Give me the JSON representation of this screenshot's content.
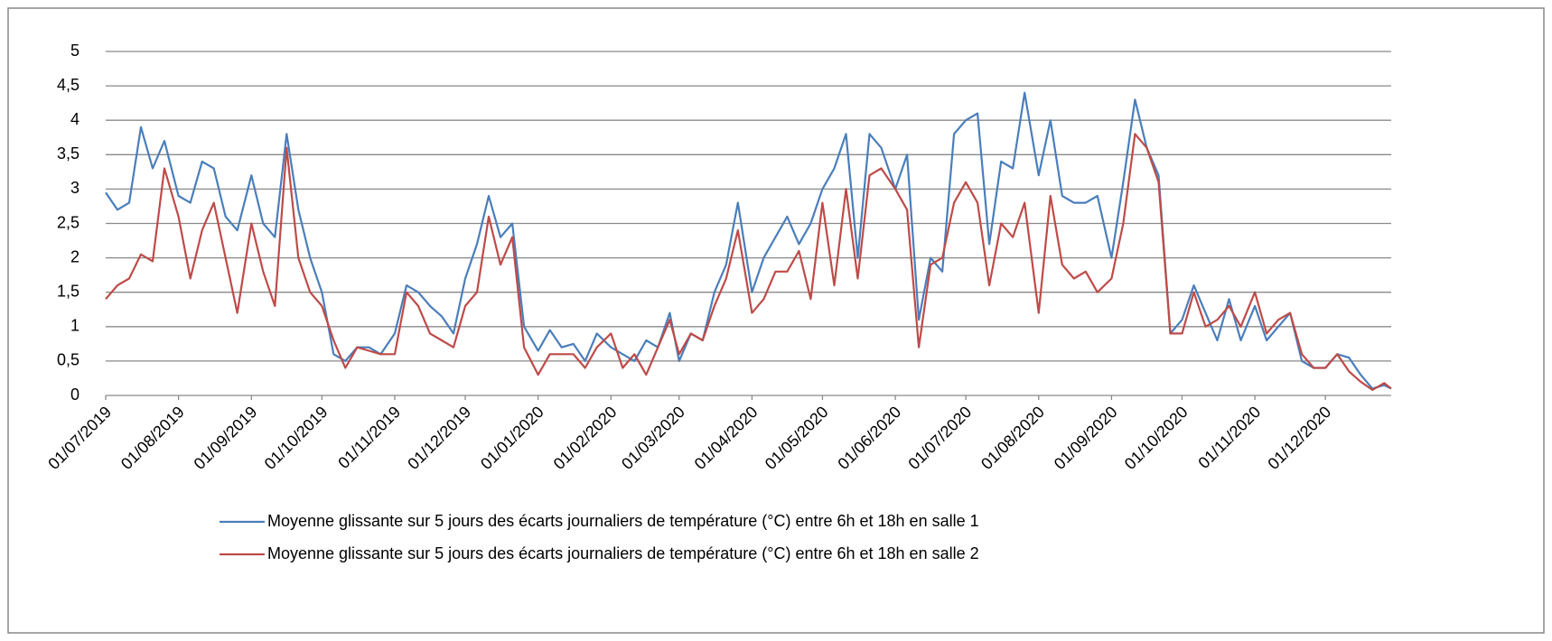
{
  "chart_data": {
    "type": "line",
    "x": [
      "01/07/2019",
      "06/07/2019",
      "11/07/2019",
      "16/07/2019",
      "21/07/2019",
      "26/07/2019",
      "01/08/2019",
      "06/08/2019",
      "11/08/2019",
      "16/08/2019",
      "21/08/2019",
      "26/08/2019",
      "01/09/2019",
      "06/09/2019",
      "11/09/2019",
      "16/09/2019",
      "21/09/2019",
      "26/09/2019",
      "01/10/2019",
      "06/10/2019",
      "11/10/2019",
      "16/10/2019",
      "21/10/2019",
      "26/10/2019",
      "01/11/2019",
      "06/11/2019",
      "11/11/2019",
      "16/11/2019",
      "21/11/2019",
      "26/11/2019",
      "01/12/2019",
      "06/12/2019",
      "11/12/2019",
      "16/12/2019",
      "21/12/2019",
      "26/12/2019",
      "01/01/2020",
      "06/01/2020",
      "11/01/2020",
      "16/01/2020",
      "21/01/2020",
      "26/01/2020",
      "01/02/2020",
      "06/02/2020",
      "11/02/2020",
      "16/02/2020",
      "21/02/2020",
      "26/02/2020",
      "01/03/2020",
      "06/03/2020",
      "11/03/2020",
      "16/03/2020",
      "21/03/2020",
      "26/03/2020",
      "01/04/2020",
      "06/04/2020",
      "11/04/2020",
      "16/04/2020",
      "21/04/2020",
      "26/04/2020",
      "01/05/2020",
      "06/05/2020",
      "11/05/2020",
      "16/05/2020",
      "21/05/2020",
      "26/05/2020",
      "01/06/2020",
      "06/06/2020",
      "11/06/2020",
      "16/06/2020",
      "21/06/2020",
      "26/06/2020",
      "01/07/2020",
      "06/07/2020",
      "11/07/2020",
      "16/07/2020",
      "21/07/2020",
      "26/07/2020",
      "01/08/2020",
      "06/08/2020",
      "11/08/2020",
      "16/08/2020",
      "21/08/2020",
      "26/08/2020",
      "01/09/2020",
      "06/09/2020",
      "11/09/2020",
      "16/09/2020",
      "21/09/2020",
      "26/09/2020",
      "01/10/2020",
      "06/10/2020",
      "11/10/2020",
      "16/10/2020",
      "21/10/2020",
      "26/10/2020",
      "01/11/2020",
      "06/11/2020",
      "11/11/2020",
      "16/11/2020",
      "21/11/2020",
      "26/11/2020",
      "01/12/2020",
      "06/12/2020",
      "11/12/2020",
      "16/12/2020",
      "21/12/2020",
      "26/12/2020",
      "29/12/2020"
    ],
    "series": [
      {
        "name": "Moyenne glissante sur 5 jours des écarts journaliers de température (°C) entre 6h et 18h en salle 1",
        "color": "#4a7ebb",
        "values": [
          2.95,
          2.7,
          2.8,
          3.9,
          3.3,
          3.7,
          2.9,
          2.8,
          3.4,
          3.3,
          2.6,
          2.4,
          3.2,
          2.5,
          2.3,
          3.8,
          2.7,
          2.0,
          1.5,
          0.6,
          0.5,
          0.7,
          0.7,
          0.6,
          0.9,
          1.6,
          1.5,
          1.3,
          1.15,
          0.9,
          1.7,
          2.2,
          2.9,
          2.3,
          2.5,
          1.0,
          0.65,
          0.95,
          0.7,
          0.75,
          0.5,
          0.9,
          0.7,
          0.6,
          0.5,
          0.8,
          0.7,
          1.2,
          0.5,
          0.9,
          0.8,
          1.5,
          1.9,
          2.8,
          1.5,
          2.0,
          2.3,
          2.6,
          2.2,
          2.5,
          3.0,
          3.3,
          3.8,
          2.0,
          3.8,
          3.6,
          3.0,
          3.5,
          1.1,
          2.0,
          1.8,
          3.8,
          4.0,
          4.1,
          2.2,
          3.4,
          3.3,
          4.4,
          3.2,
          4.0,
          2.9,
          2.8,
          2.8,
          2.9,
          2.0,
          3.1,
          4.3,
          3.6,
          3.2,
          0.9,
          1.1,
          1.6,
          1.2,
          0.8,
          1.4,
          0.8,
          1.3,
          0.8,
          1.0,
          1.2,
          0.5,
          0.4,
          0.4,
          0.6,
          0.55,
          0.3,
          0.1,
          0.15,
          0.1
        ]
      },
      {
        "name": "Moyenne glissante sur 5 jours des écarts journaliers de température (°C) entre 6h et 18h en salle 2",
        "color": "#be4b48",
        "values": [
          1.4,
          1.6,
          1.7,
          2.05,
          1.95,
          3.3,
          2.6,
          1.7,
          2.4,
          2.8,
          2.0,
          1.2,
          2.5,
          1.8,
          1.3,
          3.6,
          2.0,
          1.5,
          1.3,
          0.8,
          0.4,
          0.7,
          0.65,
          0.6,
          0.6,
          1.5,
          1.3,
          0.9,
          0.8,
          0.7,
          1.3,
          1.5,
          2.6,
          1.9,
          2.3,
          0.7,
          0.3,
          0.6,
          0.6,
          0.6,
          0.4,
          0.7,
          0.9,
          0.4,
          0.6,
          0.3,
          0.7,
          1.1,
          0.6,
          0.9,
          0.8,
          1.3,
          1.7,
          2.4,
          1.2,
          1.4,
          1.8,
          1.8,
          2.1,
          1.4,
          2.8,
          1.6,
          3.0,
          1.7,
          3.2,
          3.3,
          3.0,
          2.7,
          0.7,
          1.9,
          2.0,
          2.8,
          3.1,
          2.8,
          1.6,
          2.5,
          2.3,
          2.8,
          1.2,
          2.9,
          1.9,
          1.7,
          1.8,
          1.5,
          1.7,
          2.5,
          3.8,
          3.6,
          3.1,
          0.9,
          0.9,
          1.5,
          1.0,
          1.1,
          1.3,
          1.0,
          1.5,
          0.9,
          1.1,
          1.2,
          0.6,
          0.4,
          0.4,
          0.6,
          0.35,
          0.2,
          0.08,
          0.18,
          0.1
        ]
      }
    ],
    "xlim": [
      "01/07/2019",
      "29/12/2020"
    ],
    "xticks": [
      "01/07/2019",
      "01/08/2019",
      "01/09/2019",
      "01/10/2019",
      "01/11/2019",
      "01/12/2019",
      "01/01/2020",
      "01/02/2020",
      "01/03/2020",
      "01/04/2020",
      "01/05/2020",
      "01/06/2020",
      "01/07/2020",
      "01/08/2020",
      "01/09/2020",
      "01/10/2020",
      "01/11/2020",
      "01/12/2020"
    ],
    "ylim": [
      0,
      5
    ],
    "yticks": [
      0,
      {
        "value": 0.5,
        "label": "0,5"
      },
      1,
      {
        "value": 1.5,
        "label": "1,5"
      },
      2,
      {
        "value": 2.5,
        "label": "2,5"
      },
      3,
      {
        "value": 3.5,
        "label": "3,5"
      },
      4,
      {
        "value": 4.5,
        "label": "4,5"
      },
      5
    ],
    "grid": true,
    "legend": "bottom"
  }
}
